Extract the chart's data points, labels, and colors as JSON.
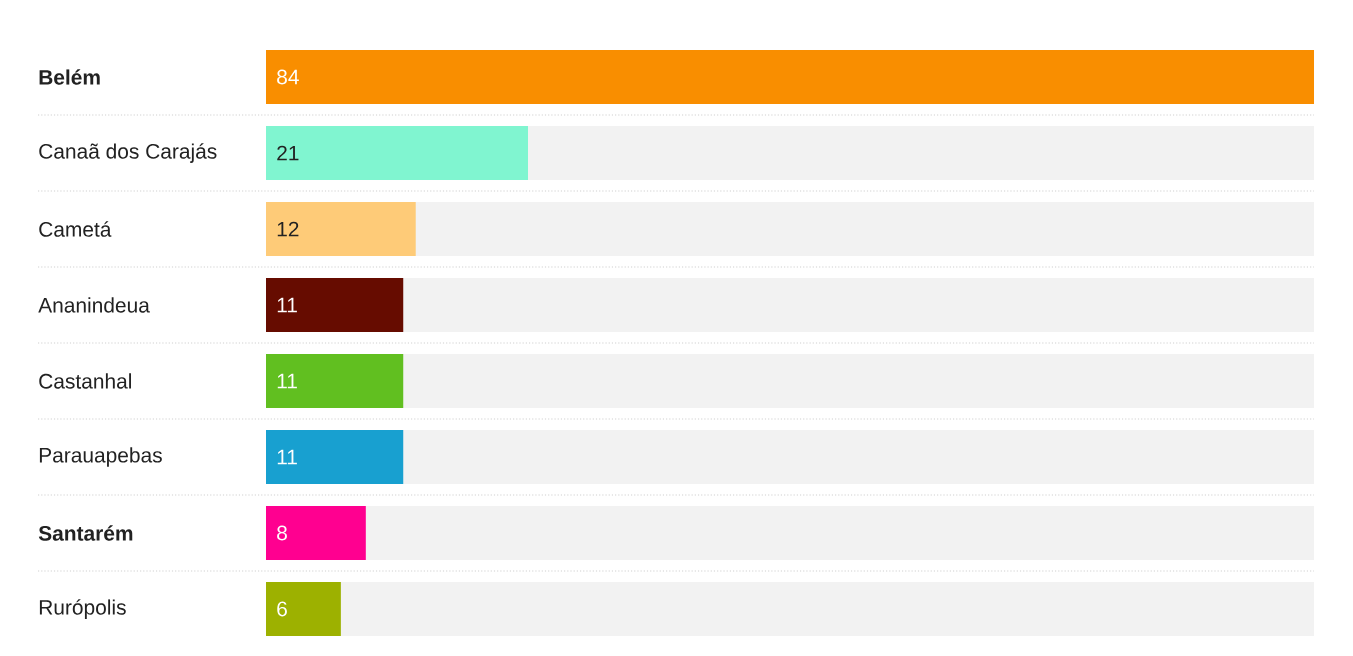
{
  "chart_data": {
    "type": "bar",
    "orientation": "horizontal",
    "categories": [
      "**Belém**",
      "Canaã dos Carajás",
      "Cametá",
      "Ananindeua",
      "Castanhal",
      "Parauapebas",
      "**Santarém**",
      "Rurópolis"
    ],
    "values": [
      84,
      21,
      12,
      11,
      11,
      11,
      8,
      6
    ],
    "colors": [
      "#f98e00",
      "#80f5d0",
      "#fecb78",
      "#660c00",
      "#61bf20",
      "#18a0d0",
      "#ff0090",
      "#9db100"
    ],
    "data_labels": true
  }
}
